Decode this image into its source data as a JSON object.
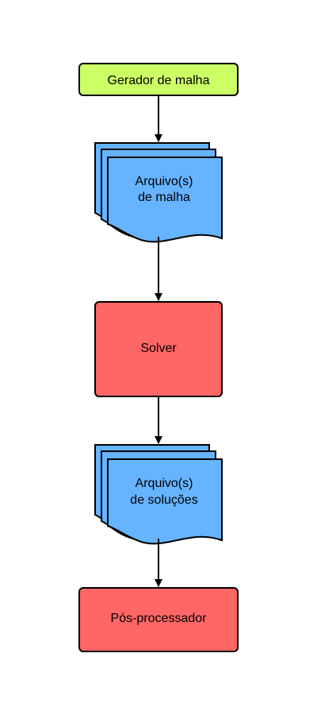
{
  "colors": {
    "green": "#ccff66",
    "blue": "#66b3ff",
    "red": "#ff6666",
    "stroke": "#000000"
  },
  "nodes": {
    "mesh_generator": {
      "label": "Gerador de malha"
    },
    "mesh_files": {
      "line1": "Arquivo(s)",
      "line2": "de malha"
    },
    "solver": {
      "label": "Solver"
    },
    "solution_files": {
      "line1": "Arquivo(s)",
      "line2": "de soluções"
    },
    "post_processor": {
      "label": "Pós-processador"
    }
  }
}
